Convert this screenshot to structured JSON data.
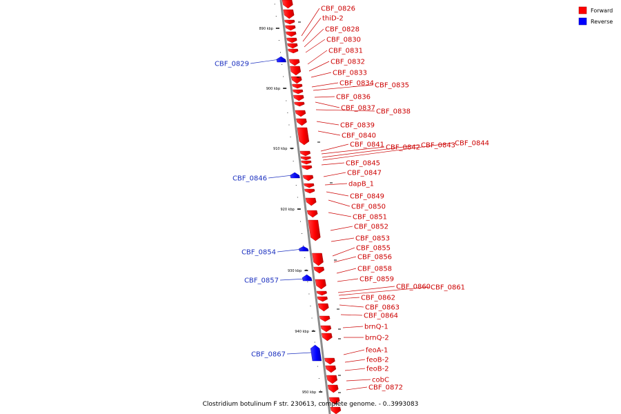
{
  "legend": {
    "forward": {
      "label": "Forward",
      "color": "#ff0000"
    },
    "reverse": {
      "label": "Reverse",
      "color": "#0000ff"
    }
  },
  "footer": "Clostridium botulinum F str. 230613, complete genome. - 0..3993083",
  "axis": {
    "ticks": [
      "890 kbp",
      "900 kbp",
      "910 kbp",
      "920 kbp",
      "930 kbp",
      "940 kbp",
      "950 kbp"
    ]
  },
  "forward_genes": [
    "CBF_0826",
    "thiD-2",
    "CBF_0828",
    "CBF_0830",
    "CBF_0831",
    "CBF_0832",
    "CBF_0833",
    "CBF_0834",
    "CBF_0835",
    "CBF_0836",
    "CBF_0837",
    "CBF_0838",
    "CBF_0839",
    "CBF_0840",
    "CBF_0841",
    "CBF_0842",
    "CBF_0843",
    "CBF_0844",
    "CBF_0845",
    "CBF_0847",
    "dapB_1",
    "CBF_0849",
    "CBF_0850",
    "CBF_0851",
    "CBF_0852",
    "CBF_0853",
    "CBF_0855",
    "CBF_0856",
    "CBF_0858",
    "CBF_0859",
    "CBF_0860",
    "CBF_0861",
    "CBF_0862",
    "CBF_0863",
    "CBF_0864",
    "brnQ-1",
    "brnQ-2",
    "feoA-1",
    "feoB-2",
    "feoB-2",
    "cobC",
    "CBF_0872"
  ],
  "reverse_genes": [
    "CBF_0829",
    "CBF_0846",
    "CBF_0854",
    "CBF_0857",
    "CBF_0867"
  ]
}
